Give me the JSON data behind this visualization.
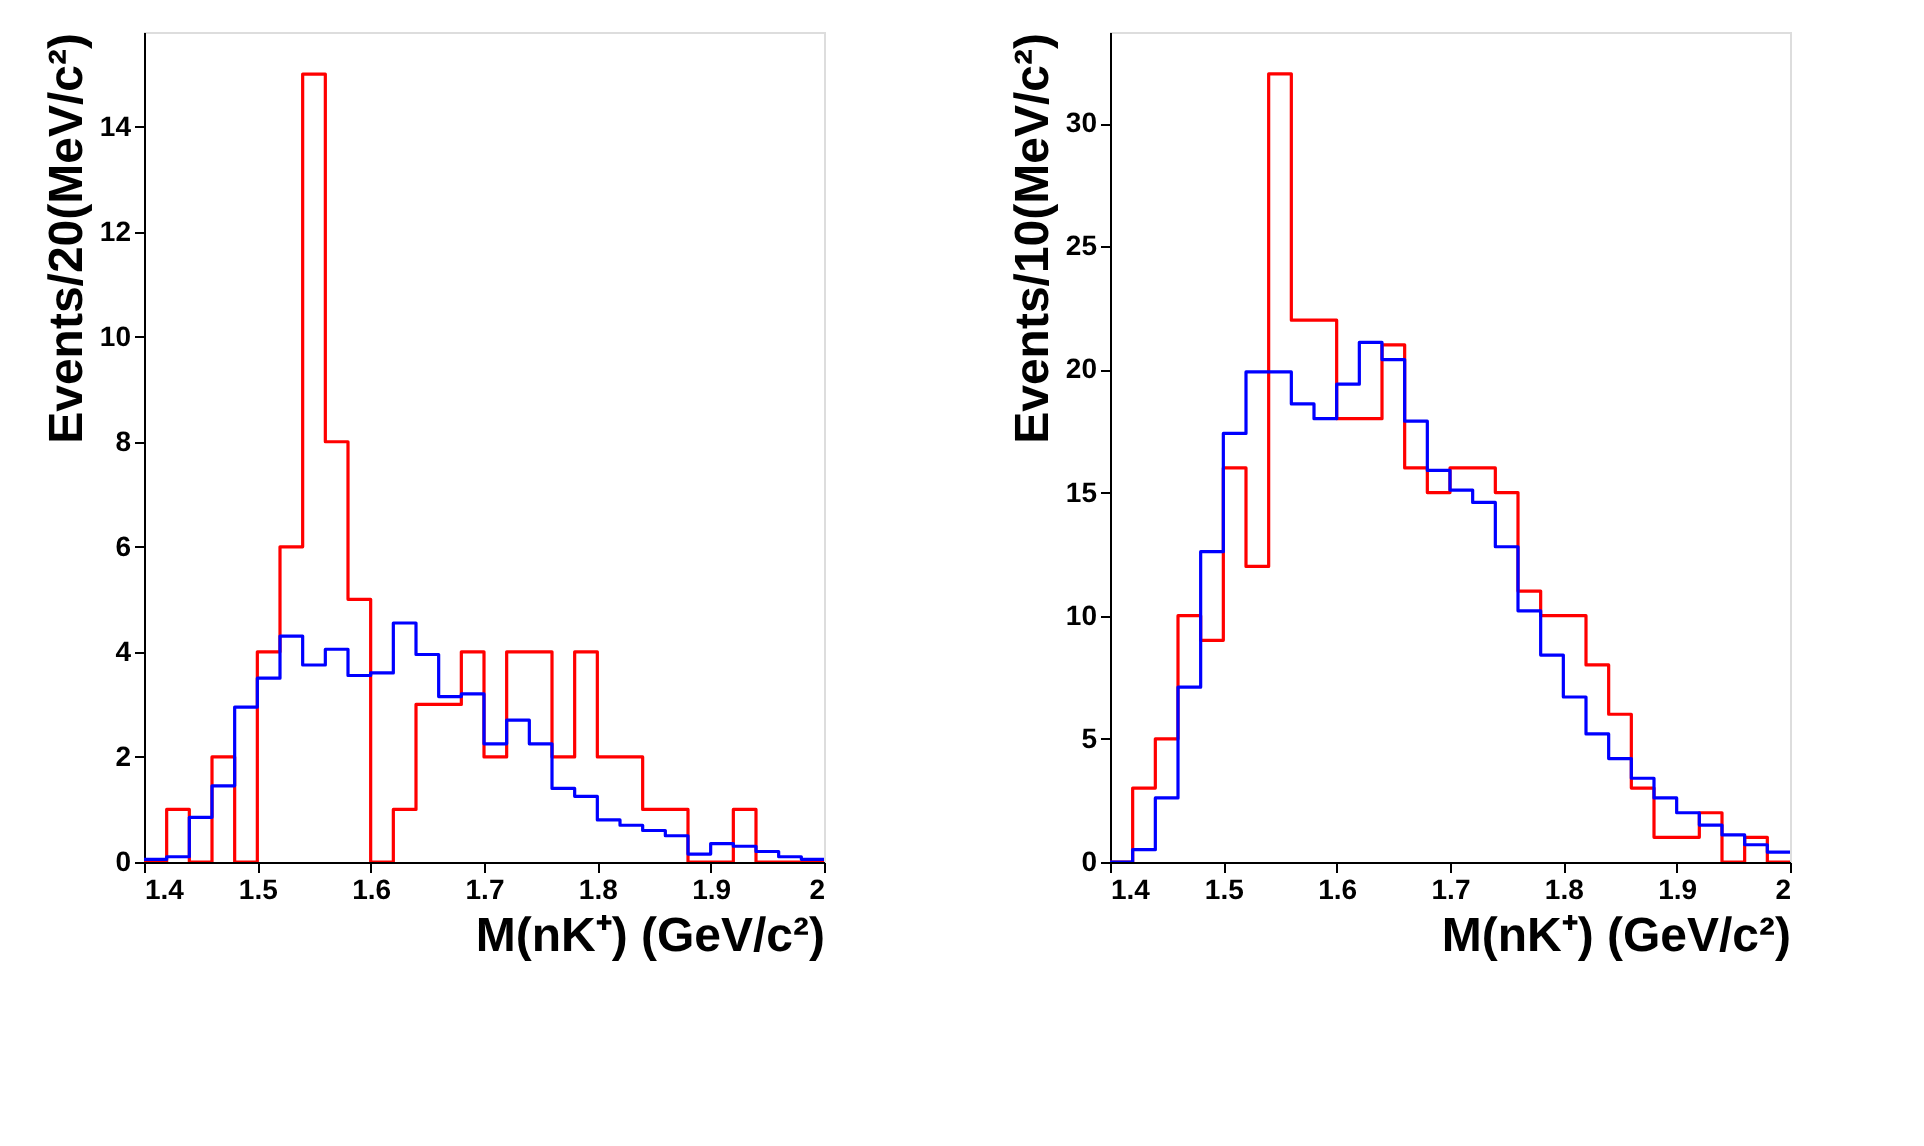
{
  "chart_data": [
    {
      "type": "histogram",
      "xlabel": "M(nK⁺) (GeV/c²)",
      "ylabel": "Events/20(MeV/c²)",
      "bins": [
        1.4,
        1.42,
        1.44,
        1.46,
        1.48,
        1.5,
        1.52,
        1.54,
        1.56,
        1.58,
        1.6,
        1.62,
        1.64,
        1.66,
        1.68,
        1.7,
        1.72,
        1.74,
        1.76,
        1.78,
        1.8,
        1.82,
        1.84,
        1.86,
        1.88,
        1.9,
        1.92,
        1.94,
        1.96,
        1.98,
        2.0
      ],
      "series": [
        {
          "color": "#ff0000",
          "values": [
            0,
            1,
            0,
            2,
            0,
            4,
            6,
            15,
            8,
            5,
            0,
            1,
            3,
            3,
            4,
            2,
            4,
            4,
            2,
            4,
            2,
            2,
            1,
            1,
            0,
            0,
            1,
            0,
            0,
            0
          ]
        },
        {
          "color": "#0000ff",
          "values": [
            0.05,
            0.1,
            0.85,
            1.45,
            2.95,
            3.5,
            4.3,
            3.75,
            4.05,
            3.55,
            3.6,
            4.55,
            3.95,
            3.15,
            3.2,
            2.25,
            2.7,
            2.25,
            1.4,
            1.25,
            0.8,
            0.7,
            0.6,
            0.5,
            0.15,
            0.35,
            0.3,
            0.2,
            0.1,
            0.05
          ]
        }
      ],
      "xlim": [
        1.4,
        2.0
      ],
      "xticks": [
        1.4,
        1.5,
        1.6,
        1.7,
        1.8,
        1.9,
        2
      ],
      "ylim": [
        0,
        15.8
      ],
      "yticks": [
        0,
        2,
        4,
        6,
        8,
        10,
        12,
        14
      ],
      "grid": false
    },
    {
      "type": "histogram",
      "xlabel": "M(nK⁺) (GeV/c²)",
      "ylabel": "Events/10(MeV/c²)",
      "bins": [
        1.4,
        1.42,
        1.44,
        1.46,
        1.48,
        1.5,
        1.52,
        1.54,
        1.56,
        1.58,
        1.6,
        1.62,
        1.64,
        1.66,
        1.68,
        1.7,
        1.72,
        1.74,
        1.76,
        1.78,
        1.8,
        1.82,
        1.84,
        1.86,
        1.88,
        1.9,
        1.92,
        1.94,
        1.96,
        1.98,
        2.0
      ],
      "series": [
        {
          "color": "#ff0000",
          "values": [
            0,
            3,
            5,
            10,
            9,
            16,
            12,
            32,
            22,
            22,
            18,
            18,
            21,
            16,
            15,
            16,
            16,
            15,
            11,
            10,
            10,
            8,
            6,
            3,
            1,
            1,
            2,
            0,
            1,
            0
          ]
        },
        {
          "color": "#0000ff",
          "values": [
            0,
            0.5,
            2.6,
            7.1,
            12.6,
            17.4,
            19.9,
            19.9,
            18.6,
            18,
            19.4,
            21.1,
            20.4,
            17.9,
            15.9,
            15.1,
            14.6,
            12.8,
            10.2,
            8.4,
            6.7,
            5.2,
            4.2,
            3.4,
            2.6,
            2.0,
            1.5,
            1.1,
            0.7,
            0.4
          ]
        }
      ],
      "xlim": [
        1.4,
        2.0
      ],
      "xticks": [
        1.4,
        1.5,
        1.6,
        1.7,
        1.8,
        1.9,
        2
      ],
      "ylim": [
        0,
        33.7
      ],
      "yticks": [
        0,
        5,
        10,
        15,
        20,
        25,
        30
      ],
      "grid": false
    }
  ]
}
